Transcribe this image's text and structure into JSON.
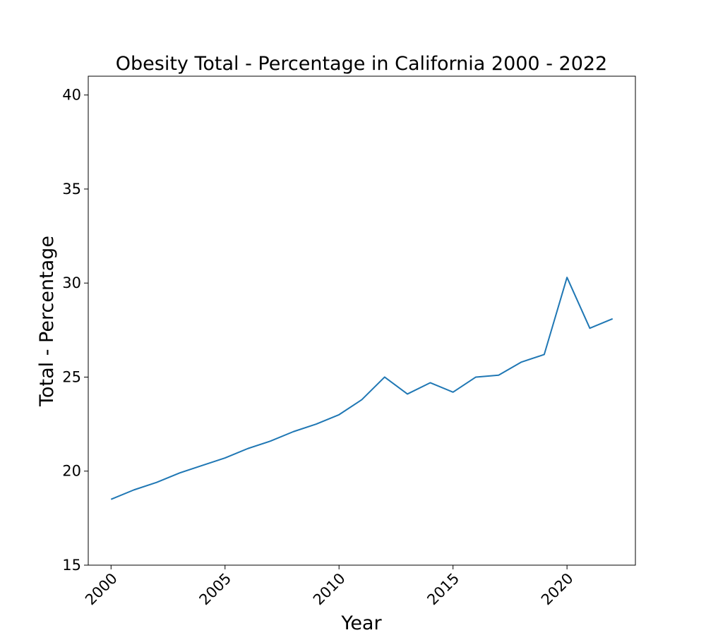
{
  "chart_data": {
    "type": "line",
    "title": "Obesity Total - Percentage in California 2000 - 2022",
    "xlabel": "Year",
    "ylabel": "Total - Percentage",
    "xlim": [
      1999,
      2023
    ],
    "ylim": [
      15,
      41
    ],
    "xticks": [
      2000,
      2005,
      2010,
      2015,
      2020
    ],
    "yticks": [
      15,
      20,
      25,
      30,
      35,
      40
    ],
    "grid": false,
    "line_color": "#1f77b4",
    "series": [
      {
        "x": [
          2000,
          2001,
          2002,
          2003,
          2004,
          2005,
          2006,
          2007,
          2008,
          2009,
          2010,
          2011,
          2012,
          2013,
          2014,
          2015,
          2016,
          2017,
          2018,
          2019,
          2020,
          2021,
          2022
        ],
        "values": [
          18.5,
          19.0,
          19.4,
          19.9,
          20.3,
          20.7,
          21.2,
          21.6,
          22.1,
          22.5,
          23.0,
          23.8,
          25.0,
          24.1,
          24.7,
          24.2,
          25.0,
          25.1,
          25.8,
          26.2,
          30.3,
          27.6,
          28.1
        ]
      }
    ]
  }
}
